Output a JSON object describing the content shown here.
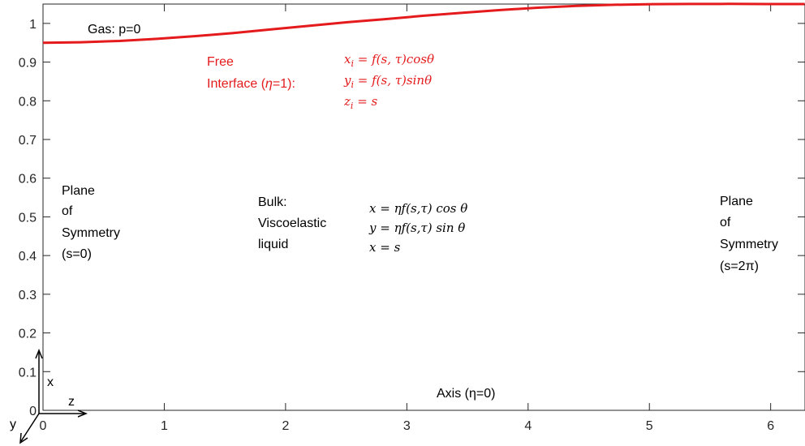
{
  "chart_data": {
    "type": "line",
    "xlim": [
      0,
      6.2832
    ],
    "ylim": [
      0,
      1.05
    ],
    "x_ticks": [
      "0",
      "1",
      "2",
      "3",
      "4",
      "5",
      "6"
    ],
    "y_ticks": [
      "0",
      "0.1",
      "0.2",
      "0.3",
      "0.4",
      "0.5",
      "0.6",
      "0.7",
      "0.8",
      "0.9",
      "1"
    ],
    "grid": false,
    "series": [
      {
        "color": "#e41a1c",
        "x": [
          0,
          0.31,
          0.63,
          0.94,
          1.26,
          1.57,
          1.88,
          2.2,
          2.51,
          2.83,
          3.14,
          3.46,
          3.77,
          4.08,
          4.4,
          4.71,
          5.03,
          5.34,
          5.65,
          5.97,
          6.28
        ],
        "y": [
          0.95,
          0.9512,
          0.9546,
          0.9601,
          0.9673,
          0.975,
          0.9845,
          0.9938,
          1.003,
          1.0112,
          1.0198,
          1.0275,
          1.0345,
          1.0405,
          1.0451,
          1.0482,
          1.0497,
          1.0502,
          1.0504,
          1.05,
          1.05
        ]
      }
    ]
  },
  "annotations": {
    "gas": "Gas: p=0",
    "free_1": "Free",
    "free_2_pre": "Interface (",
    "free_2_eta": "η",
    "free_2_post": "=1):",
    "xi": "x_i = f(s,τ)cosθ",
    "yi": "y_i = f(s,τ)sinθ",
    "zi": "z_i = s",
    "plane_left": [
      "Plane",
      "of",
      "Symmetry",
      "(s=0)"
    ],
    "bulk": [
      "Bulk:",
      "Viscoelastic",
      "liquid"
    ],
    "bulk_eq": [
      "x = ηf(s,τ) cos θ",
      "y = ηf(s,τ) sin θ",
      "x = s"
    ],
    "plane_right": [
      "Plane",
      "of",
      "Symmetry",
      "(s=2π)"
    ],
    "axis_label": "Axis (η=0)",
    "arrow_x": "x",
    "arrow_y": "y",
    "arrow_z": "z"
  },
  "colors": {
    "interface": "#e41a1c",
    "axes": "#262626"
  }
}
